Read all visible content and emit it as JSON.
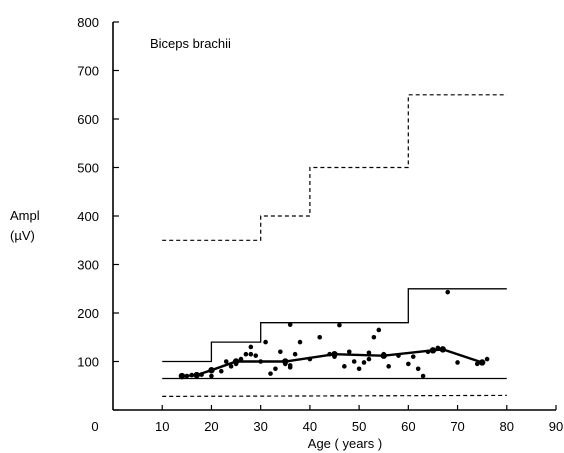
{
  "chart_data": {
    "type": "scatter",
    "title": "Biceps brachii",
    "xlabel": "Age ( years )",
    "ylabel_line1": "Ampl",
    "ylabel_line2": "(µV)",
    "xlim": [
      0,
      90
    ],
    "ylim": [
      0,
      800
    ],
    "x_ticks": [
      0,
      10,
      20,
      30,
      40,
      50,
      60,
      70,
      80,
      90
    ],
    "y_ticks": [
      0,
      100,
      200,
      300,
      400,
      500,
      600,
      700,
      800
    ],
    "grid": false,
    "series": [
      {
        "style": "dashed-step",
        "points": [
          [
            10,
            350
          ],
          [
            30,
            350
          ],
          [
            30,
            400
          ],
          [
            40,
            400
          ],
          [
            40,
            500
          ],
          [
            60,
            500
          ],
          [
            60,
            650
          ],
          [
            80,
            650
          ]
        ]
      },
      {
        "style": "solid-step",
        "points": [
          [
            10,
            100
          ],
          [
            20,
            100
          ],
          [
            20,
            140
          ],
          [
            30,
            140
          ],
          [
            30,
            180
          ],
          [
            60,
            180
          ],
          [
            60,
            250
          ],
          [
            80,
            250
          ]
        ]
      },
      {
        "style": "solid-flat",
        "points": [
          [
            10,
            65
          ],
          [
            80,
            65
          ]
        ]
      },
      {
        "style": "dashed-flat",
        "points": [
          [
            10,
            28
          ],
          [
            80,
            30
          ]
        ]
      },
      {
        "style": "mean-line",
        "points": [
          [
            14,
            70
          ],
          [
            17,
            72
          ],
          [
            20,
            82
          ],
          [
            25,
            100
          ],
          [
            35,
            100
          ],
          [
            45,
            115
          ],
          [
            55,
            112
          ],
          [
            65,
            123
          ],
          [
            67,
            125
          ],
          [
            75,
            98
          ]
        ]
      },
      {
        "style": "scatter",
        "points": [
          [
            14,
            68
          ],
          [
            15,
            70
          ],
          [
            16,
            72
          ],
          [
            18,
            73
          ],
          [
            20,
            70
          ],
          [
            22,
            80
          ],
          [
            23,
            100
          ],
          [
            24,
            90
          ],
          [
            25,
            95
          ],
          [
            26,
            105
          ],
          [
            27,
            115
          ],
          [
            28,
            130
          ],
          [
            28,
            115
          ],
          [
            29,
            112
          ],
          [
            30,
            100
          ],
          [
            31,
            140
          ],
          [
            32,
            75
          ],
          [
            33,
            85
          ],
          [
            34,
            120
          ],
          [
            35,
            95
          ],
          [
            36,
            88
          ],
          [
            36,
            92
          ],
          [
            36,
            176
          ],
          [
            37,
            115
          ],
          [
            38,
            140
          ],
          [
            40,
            105
          ],
          [
            42,
            150
          ],
          [
            44,
            115
          ],
          [
            45,
            110
          ],
          [
            46,
            175
          ],
          [
            47,
            90
          ],
          [
            48,
            120
          ],
          [
            49,
            100
          ],
          [
            50,
            85
          ],
          [
            51,
            98
          ],
          [
            52,
            105
          ],
          [
            52,
            118
          ],
          [
            53,
            150
          ],
          [
            54,
            165
          ],
          [
            55,
            115
          ],
          [
            56,
            90
          ],
          [
            58,
            112
          ],
          [
            60,
            95
          ],
          [
            61,
            110
          ],
          [
            62,
            85
          ],
          [
            63,
            70
          ],
          [
            64,
            120
          ],
          [
            66,
            128
          ],
          [
            68,
            243
          ],
          [
            70,
            98
          ],
          [
            74,
            95
          ],
          [
            76,
            105
          ]
        ]
      }
    ]
  }
}
